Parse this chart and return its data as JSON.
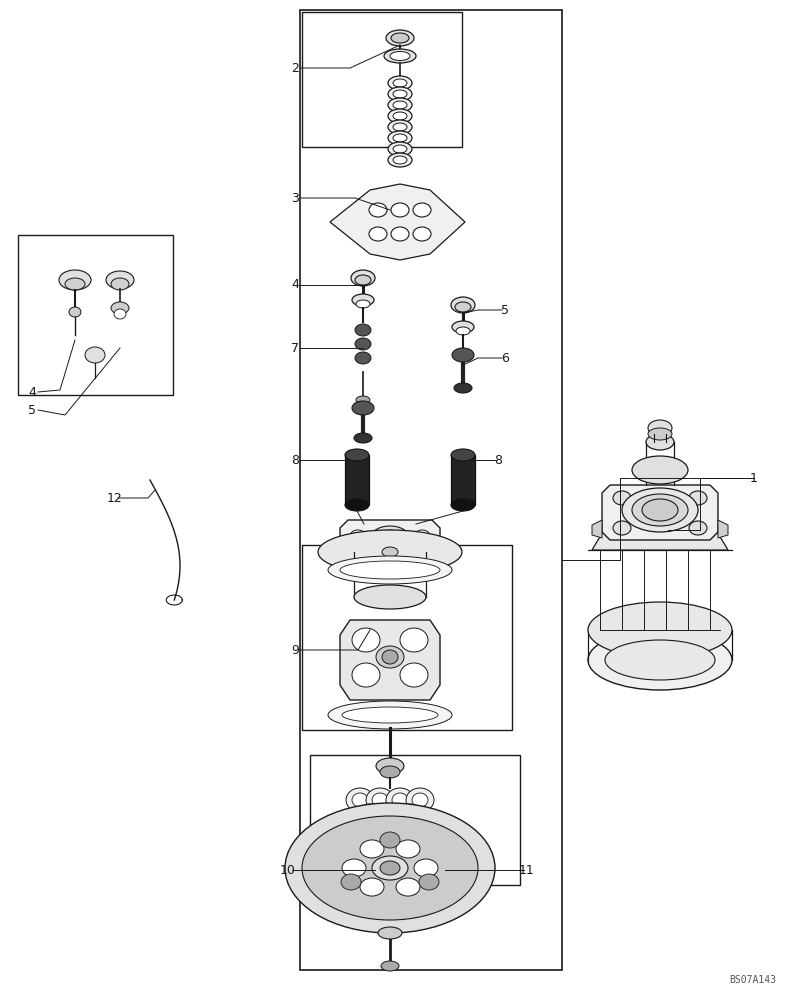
{
  "bg_color": "#ffffff",
  "lc": "#1a1a1a",
  "tc": "#1a1a1a",
  "watermark": "BS07A143",
  "fig_width": 7.96,
  "fig_height": 10.0
}
